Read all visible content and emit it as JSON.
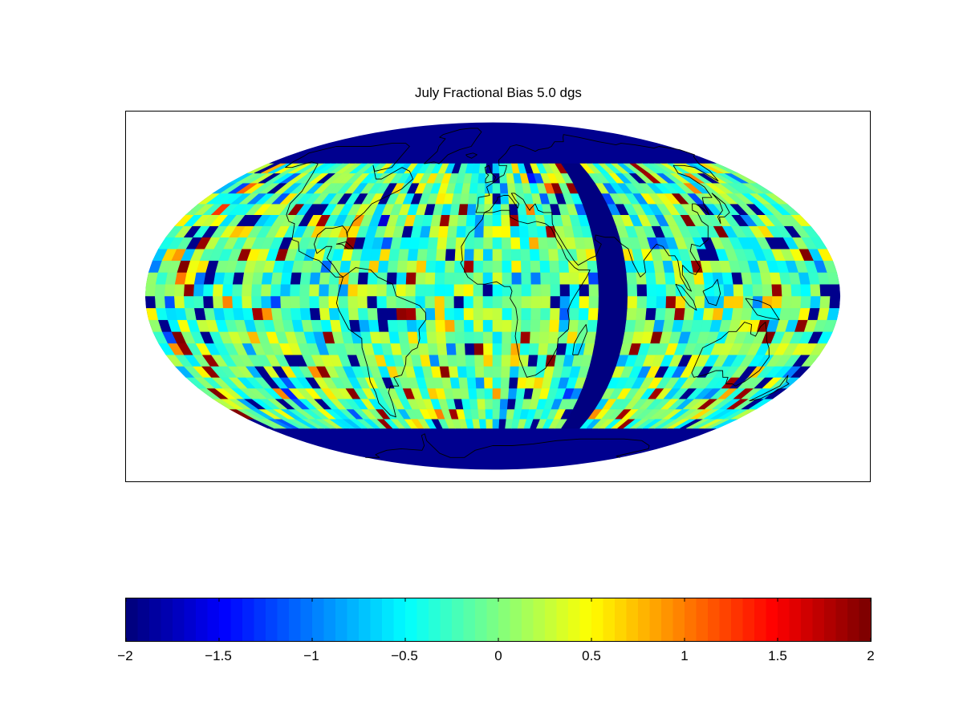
{
  "chart_data": {
    "type": "heatmap",
    "projection": "mollweide",
    "title": "July Fractional Bias 5.0 dgs",
    "grid_resolution_deg": 5.0,
    "value_range": [
      -2,
      2
    ],
    "data_lat_range": [
      -60,
      60
    ],
    "colormap": "jet",
    "colorbar": {
      "placement": "bottom",
      "ticks": [
        -2,
        -1.5,
        -1,
        -0.5,
        0,
        0.5,
        1,
        1.5,
        2
      ],
      "tick_labels": [
        "−2",
        "−1.5",
        "−1",
        "−0.5",
        "0",
        "0.5",
        "1",
        "1.5",
        "2"
      ]
    },
    "missing_value_color": "#00008f",
    "coastline_color": "#000000"
  }
}
